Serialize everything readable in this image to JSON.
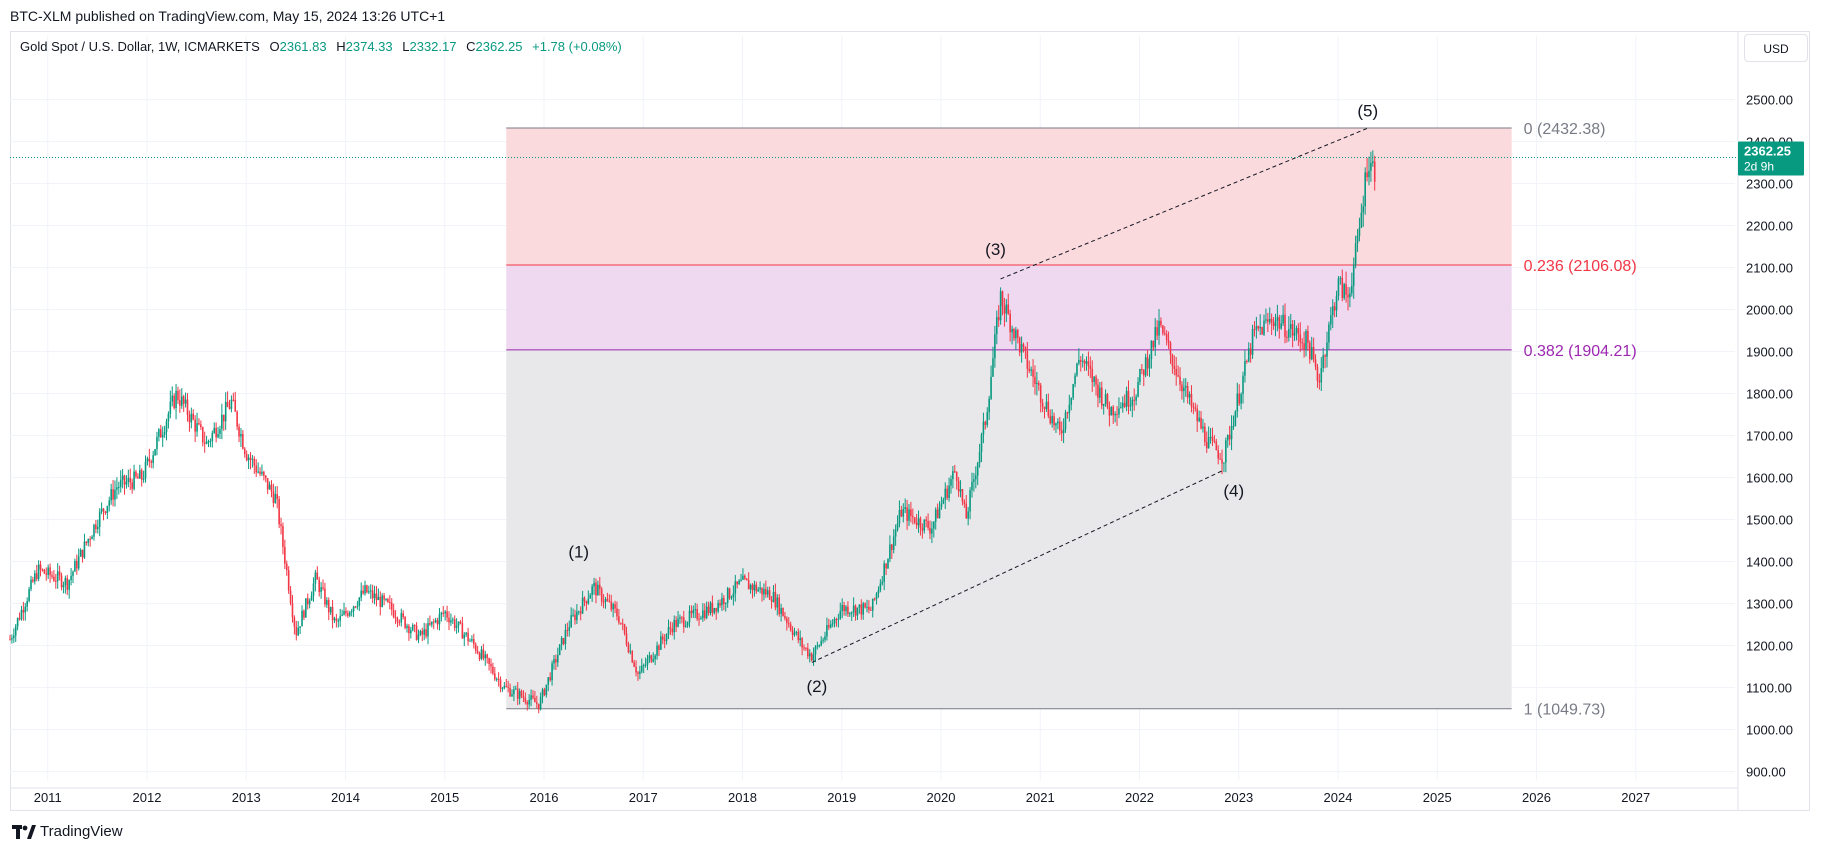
{
  "header": {
    "published": "BTC-XLM published on TradingView.com, May 15, 2024 13:26 UTC+1"
  },
  "legend": {
    "symbol": "Gold Spot / U.S. Dollar, 1W, ICMARKETS",
    "o_label": "O",
    "o": "2361.83",
    "h_label": "H",
    "h": "2374.33",
    "l_label": "L",
    "l": "2332.17",
    "c_label": "C",
    "c": "2362.25",
    "change": "+1.78 (+0.08%)"
  },
  "currency_button": "USD",
  "price_tag": {
    "price": "2362.25",
    "countdown": "2d 9h"
  },
  "footer": {
    "brand": "TradingView"
  },
  "colors": {
    "up": "#089981",
    "down": "#f23645",
    "fib_top_fill": "#fbdadd",
    "fib_mid_fill": "#eed9f0",
    "fib_low_fill": "#e8e8ea",
    "fib0_label": "#787b86",
    "fib236_label": "#f23645",
    "fib382_label": "#9c27b0",
    "fib1_label": "#787b86"
  },
  "chart_data": {
    "type": "candlestick",
    "title": "Gold Spot / U.S. Dollar, 1W, ICMARKETS",
    "ylim": [
      880,
      2580
    ],
    "yticks": [
      900,
      1000,
      1100,
      1200,
      1300,
      1400,
      1500,
      1600,
      1700,
      1800,
      1900,
      2000,
      2100,
      2200,
      2300,
      2400,
      2500
    ],
    "ytick_labels": [
      "900.00",
      "1000.00",
      "1100.00",
      "1200.00",
      "1300.00",
      "1400.00",
      "1500.00",
      "1600.00",
      "1700.00",
      "1800.00",
      "1900.00",
      "2000.00",
      "2100.00",
      "2200.00",
      "2300.00",
      "2400.00",
      "2500.00"
    ],
    "xlim": [
      2010.62,
      2028.0
    ],
    "xticks": [
      2011,
      2012,
      2013,
      2014,
      2015,
      2016,
      2017,
      2018,
      2019,
      2020,
      2021,
      2022,
      2023,
      2024,
      2025,
      2026,
      2027
    ],
    "xtick_labels": [
      "2011",
      "2012",
      "2013",
      "2014",
      "2015",
      "2016",
      "2017",
      "2018",
      "2019",
      "2020",
      "2021",
      "2022",
      "2023",
      "2024",
      "2025",
      "2026",
      "2027"
    ],
    "path_points": [
      [
        2010.62,
        1215
      ],
      [
        2010.9,
        1380
      ],
      [
        2011.2,
        1350
      ],
      [
        2011.5,
        1500
      ],
      [
        2011.7,
        1580
      ],
      [
        2011.95,
        1600
      ],
      [
        2012.3,
        1800
      ],
      [
        2012.6,
        1680
      ],
      [
        2012.85,
        1780
      ],
      [
        2013.0,
        1660
      ],
      [
        2013.3,
        1550
      ],
      [
        2013.5,
        1230
      ],
      [
        2013.7,
        1360
      ],
      [
        2013.9,
        1250
      ],
      [
        2014.2,
        1330
      ],
      [
        2014.45,
        1290
      ],
      [
        2014.75,
        1220
      ],
      [
        2015.0,
        1280
      ],
      [
        2015.3,
        1200
      ],
      [
        2015.6,
        1100
      ],
      [
        2015.95,
        1060
      ],
      [
        2016.25,
        1250
      ],
      [
        2016.5,
        1340
      ],
      [
        2016.75,
        1270
      ],
      [
        2016.95,
        1130
      ],
      [
        2017.3,
        1250
      ],
      [
        2017.7,
        1290
      ],
      [
        2018.0,
        1350
      ],
      [
        2018.3,
        1320
      ],
      [
        2018.6,
        1200
      ],
      [
        2018.7,
        1175
      ],
      [
        2019.0,
        1290
      ],
      [
        2019.3,
        1285
      ],
      [
        2019.6,
        1520
      ],
      [
        2019.9,
        1480
      ],
      [
        2020.15,
        1620
      ],
      [
        2020.25,
        1500
      ],
      [
        2020.45,
        1740
      ],
      [
        2020.6,
        2030
      ],
      [
        2020.85,
        1880
      ],
      [
        2021.2,
        1700
      ],
      [
        2021.4,
        1890
      ],
      [
        2021.7,
        1760
      ],
      [
        2021.95,
        1800
      ],
      [
        2022.2,
        1960
      ],
      [
        2022.5,
        1780
      ],
      [
        2022.7,
        1680
      ],
      [
        2022.85,
        1650
      ],
      [
        2023.15,
        1940
      ],
      [
        2023.35,
        1980
      ],
      [
        2023.7,
        1920
      ],
      [
        2023.8,
        1830
      ],
      [
        2024.0,
        2060
      ],
      [
        2024.1,
        2030
      ],
      [
        2024.2,
        2160
      ],
      [
        2024.3,
        2360
      ],
      [
        2024.37,
        2330
      ]
    ],
    "fib_retracement": {
      "x_start": 2015.62,
      "x_end": 2025.75,
      "levels": [
        {
          "ratio": 0,
          "price": 2432.38,
          "label": "0 (2432.38)"
        },
        {
          "ratio": 0.236,
          "price": 2106.08,
          "label": "0.236 (2106.08)"
        },
        {
          "ratio": 0.382,
          "price": 1904.21,
          "label": "0.382 (1904.21)"
        },
        {
          "ratio": 1,
          "price": 1049.73,
          "label": "1 (1049.73)"
        }
      ]
    },
    "wave_labels": [
      {
        "label": "(1)",
        "x": 2016.35,
        "y": 1410
      },
      {
        "label": "(2)",
        "x": 2018.75,
        "y": 1090
      },
      {
        "label": "(3)",
        "x": 2020.55,
        "y": 2130
      },
      {
        "label": "(4)",
        "x": 2022.95,
        "y": 1555
      },
      {
        "label": "(5)",
        "x": 2024.3,
        "y": 2460
      }
    ],
    "trend_lines": [
      {
        "from": [
          2018.7,
          1160
        ],
        "to": [
          2022.85,
          1618
        ]
      },
      {
        "from": [
          2020.6,
          2073
        ],
        "to": [
          2024.3,
          2432
        ]
      }
    ],
    "last_price": 2362.25
  }
}
